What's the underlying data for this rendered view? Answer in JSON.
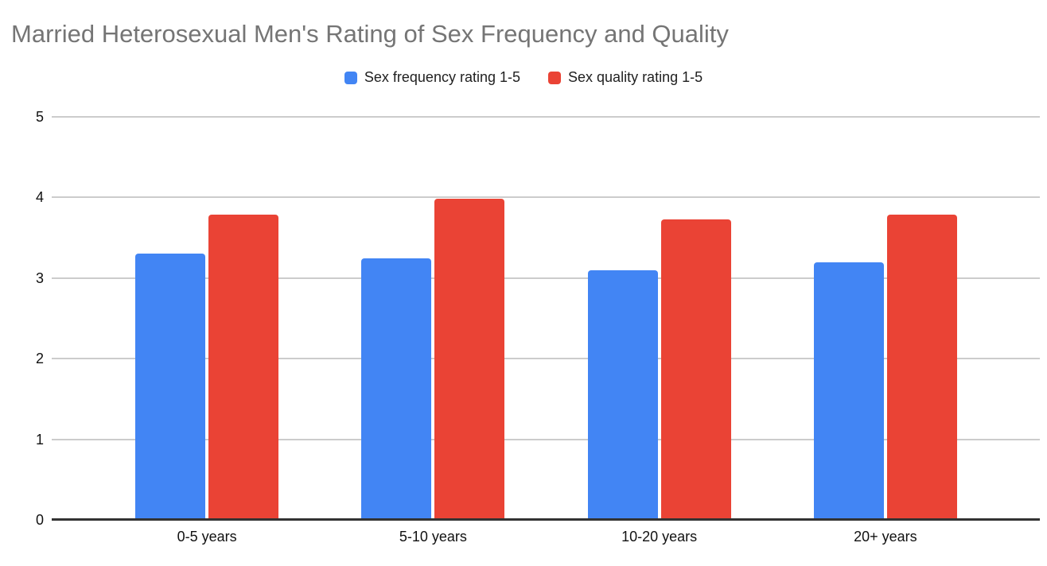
{
  "chart_data": {
    "type": "bar",
    "title": "Married Heterosexual Men's Rating of Sex Frequency and Quality",
    "categories": [
      "0-5 years",
      "5-10 years",
      "10-20 years",
      "20+ years"
    ],
    "series": [
      {
        "name": "Sex frequency rating 1-5",
        "color": "#4285F4",
        "values": [
          3.3,
          3.24,
          3.1,
          3.2
        ]
      },
      {
        "name": "Sex quality rating 1-5",
        "color": "#EA4335",
        "values": [
          3.79,
          3.98,
          3.73,
          3.79
        ]
      }
    ],
    "xlabel": "",
    "ylabel": "",
    "ylim": [
      0,
      5
    ],
    "yticks": [
      0,
      1,
      2,
      3,
      4,
      5
    ],
    "grid": true,
    "legend_position": "top",
    "colors": {
      "title_text": "#757575",
      "axis_text": "#111111",
      "legend_text": "#1f1f1f",
      "gridline": "#cccccc",
      "baseline": "#333333",
      "background": "#ffffff"
    }
  }
}
